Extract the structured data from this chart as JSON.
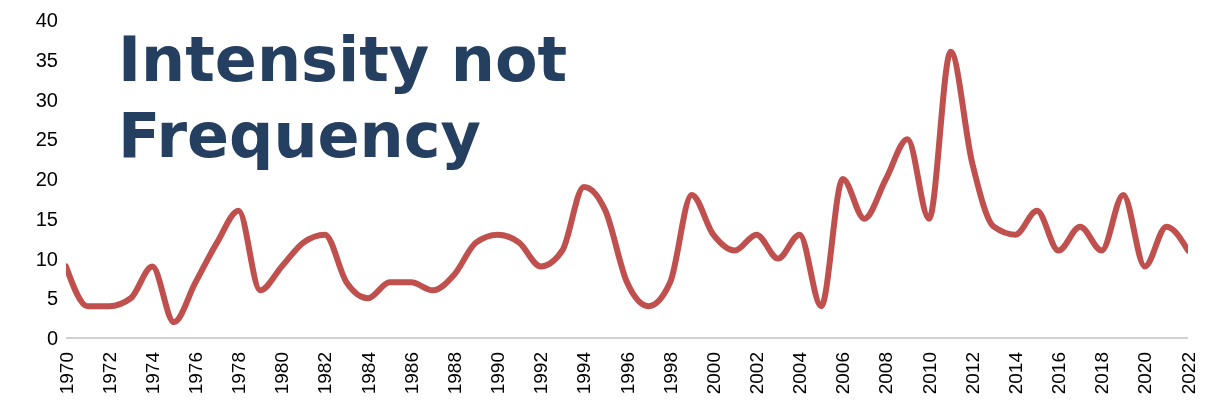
{
  "chart_data": {
    "type": "line",
    "title": "Intensity not Frequency",
    "x": [
      1970,
      1971,
      1972,
      1973,
      1974,
      1975,
      1976,
      1977,
      1978,
      1979,
      1980,
      1981,
      1982,
      1983,
      1984,
      1985,
      1986,
      1987,
      1988,
      1989,
      1990,
      1991,
      1992,
      1993,
      1994,
      1995,
      1996,
      1997,
      1998,
      1999,
      2000,
      2001,
      2002,
      2003,
      2004,
      2005,
      2006,
      2007,
      2008,
      2009,
      2010,
      2011,
      2012,
      2013,
      2014,
      2015,
      2016,
      2017,
      2018,
      2019,
      2020,
      2021,
      2022
    ],
    "series": [
      {
        "color": "#c0504d",
        "values": [
          9,
          4,
          4,
          5,
          9,
          2,
          7,
          12,
          16,
          6,
          9,
          12,
          13,
          7,
          5,
          7,
          7,
          6,
          8,
          12,
          13,
          12,
          9,
          11,
          19,
          16,
          7,
          4,
          7,
          18,
          13,
          11,
          13,
          10,
          13,
          4,
          20,
          15,
          20,
          25,
          15,
          36,
          22,
          14,
          13,
          16,
          11,
          14,
          11,
          18,
          9,
          14,
          11
        ]
      }
    ],
    "xlim": [
      1970,
      2022
    ],
    "xticks": [
      1970,
      1972,
      1974,
      1976,
      1978,
      1980,
      1982,
      1984,
      1986,
      1988,
      1990,
      1992,
      1994,
      1996,
      1998,
      2000,
      2002,
      2004,
      2006,
      2008,
      2010,
      2012,
      2014,
      2016,
      2018,
      2020,
      2022
    ],
    "ylim": [
      0,
      40
    ],
    "yticks": [
      0,
      5,
      10,
      15,
      20,
      25,
      30,
      35,
      40
    ],
    "grid": false,
    "legend": false,
    "marker": "none",
    "line_style": "solid"
  }
}
